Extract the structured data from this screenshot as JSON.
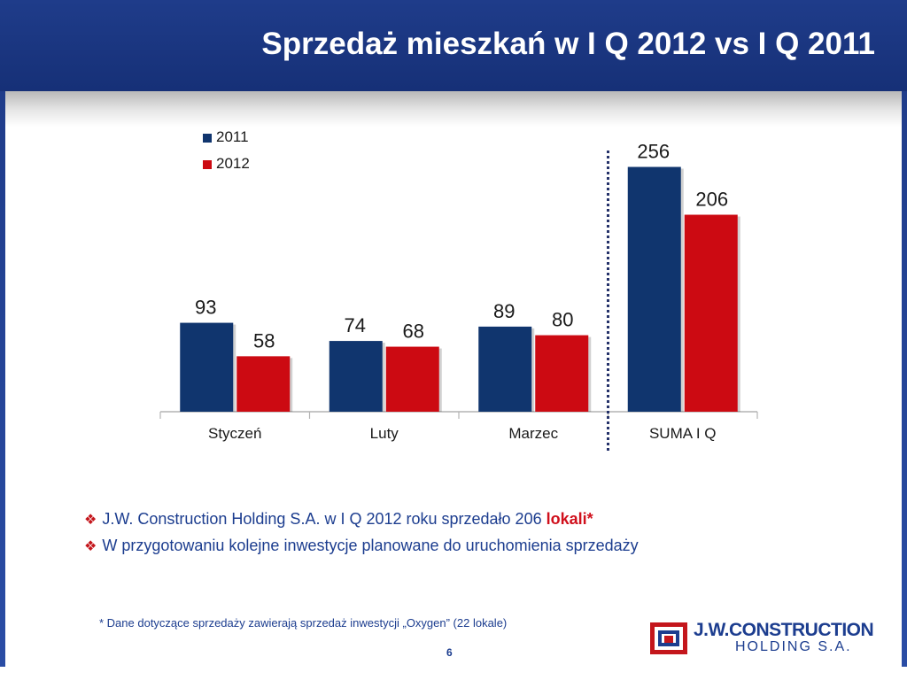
{
  "title": "Sprzedaż mieszkań w I Q 2012 vs I Q 2011",
  "colors": {
    "header": "#1f3c8a",
    "series_2011": "#10356e",
    "series_2012": "#cc0a12",
    "text": "#1c3d8f",
    "accent_red": "#c4161c"
  },
  "chart_data": {
    "type": "bar",
    "categories": [
      "Styczeń",
      "Luty",
      "Marzec",
      "SUMA I Q"
    ],
    "series": [
      {
        "name": "2011",
        "values": [
          93,
          74,
          89,
          256
        ]
      },
      {
        "name": "2012",
        "values": [
          58,
          68,
          80,
          206
        ]
      }
    ],
    "title": "",
    "xlabel": "",
    "ylabel": "",
    "ylim": [
      0,
      300
    ],
    "grid": false,
    "legend": "top-left",
    "separator_before_category": "SUMA I Q"
  },
  "bullets": [
    {
      "text": "J.W. Construction Holding S.A. w I Q 2012 roku sprzedało 206 ",
      "highlight": "lokali*"
    },
    {
      "text": "W przygotowaniu kolejne inwestycje planowane do uruchomienia sprzedaży",
      "highlight": ""
    }
  ],
  "bullet_icon": "diamond-bullet-icon",
  "footnote": "* Dane dotyczące sprzedaży zawierają sprzedaż inwestycji „Oxygen” (22 lokale)",
  "page_number": "6",
  "logo": {
    "line1": "J.W.CONSTRUCTION",
    "line2": "HOLDING S.A."
  }
}
